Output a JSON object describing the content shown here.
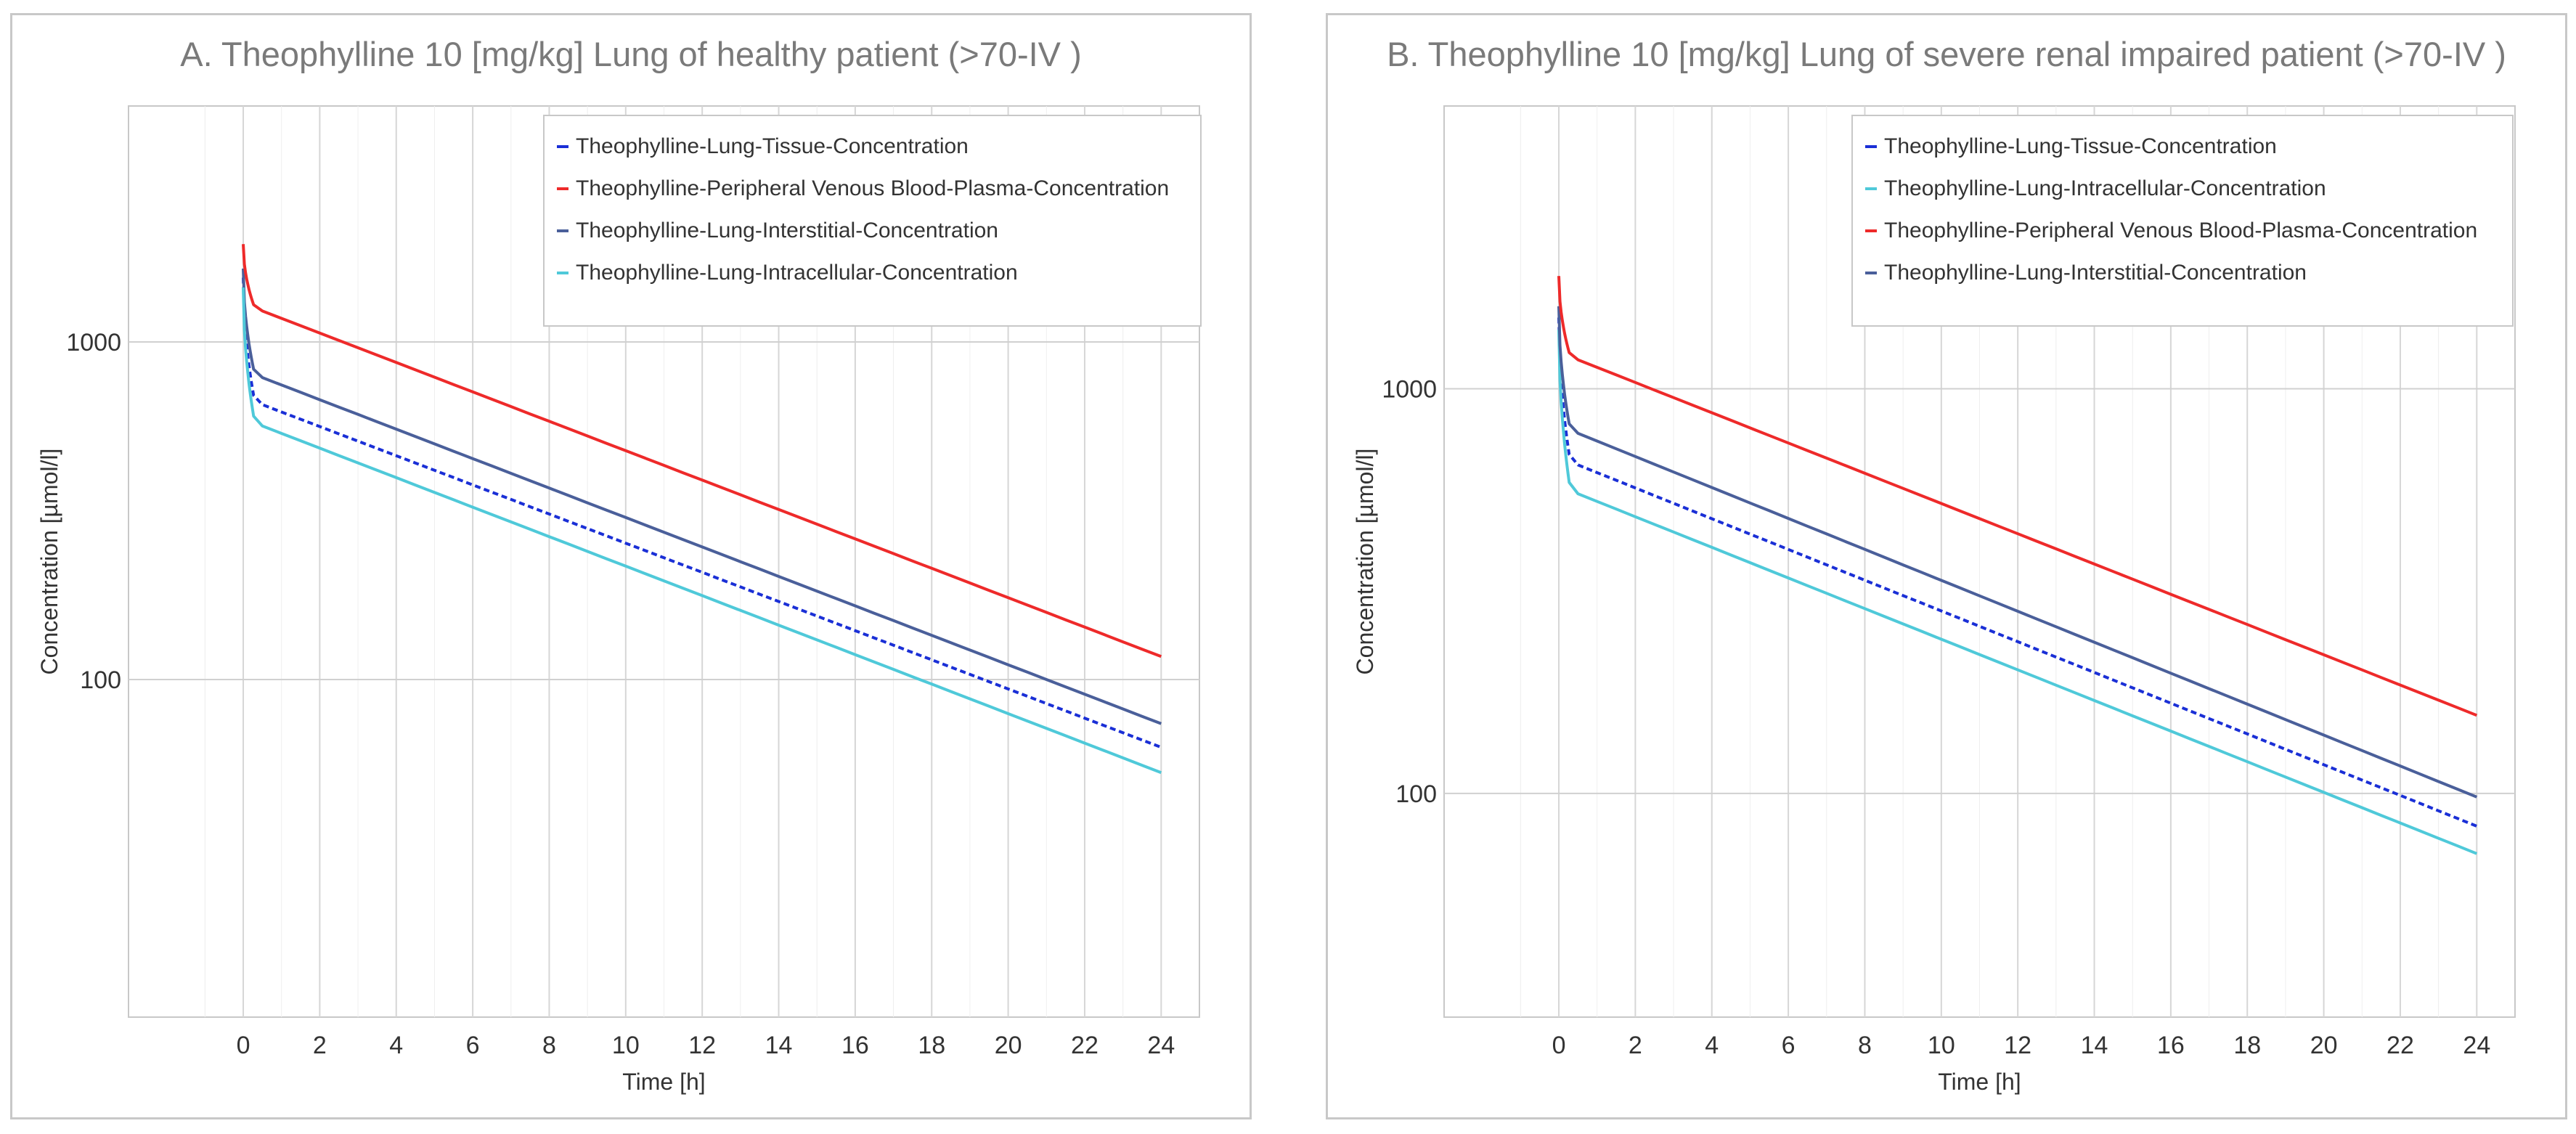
{
  "chart_data": [
    {
      "type": "line",
      "title": "A. Theophylline 10 [mg/kg] Lung of healthy patient (>70-IV )",
      "xlabel": "Time [h]",
      "ylabel": "Concentration [µmol/l]",
      "xlim": [
        -3,
        25
      ],
      "ylim": [
        10,
        5000
      ],
      "yscale": "log",
      "x_ticks": [
        0,
        2,
        4,
        6,
        8,
        10,
        12,
        14,
        16,
        18,
        20,
        22,
        24
      ],
      "y_ticks": [
        100,
        1000
      ],
      "grid": true,
      "legend_position": "top-right",
      "series": [
        {
          "name": "Theophylline-Lung-Tissue-Concentration",
          "color": "#1a2fd6",
          "dash": true,
          "peak": 1550,
          "x": [
            0.3,
            24
          ],
          "values": [
            665,
            63
          ]
        },
        {
          "name": "Theophylline-Peripheral Venous Blood-Plasma-Concentration",
          "color": "#ee2a2a",
          "dash": false,
          "peak": 1950,
          "x": [
            0.3,
            24
          ],
          "values": [
            1260,
            117
          ]
        },
        {
          "name": "Theophylline-Lung-Interstitial-Concentration",
          "color": "#4a5f9a",
          "dash": false,
          "peak": 1650,
          "x": [
            0.3,
            24
          ],
          "values": [
            800,
            74
          ]
        },
        {
          "name": "Theophylline-Lung-Intracellular-Concentration",
          "color": "#4fc9d9",
          "dash": false,
          "peak": 1450,
          "x": [
            0.3,
            24
          ],
          "values": [
            575,
            53
          ]
        }
      ]
    },
    {
      "type": "line",
      "title": "B. Theophylline 10 [mg/kg] Lung of severe renal impaired patient (>70-IV )",
      "xlabel": "Time [h]",
      "ylabel": "Concentration [µmol/l]",
      "xlim": [
        -3,
        25
      ],
      "ylim": [
        28,
        5000
      ],
      "yscale": "log",
      "x_ticks": [
        0,
        2,
        4,
        6,
        8,
        10,
        12,
        14,
        16,
        18,
        20,
        22,
        24
      ],
      "y_ticks": [
        100,
        1000
      ],
      "grid": true,
      "legend_position": "top-right",
      "series": [
        {
          "name": "Theophylline-Lung-Tissue-Concentration",
          "color": "#1a2fd6",
          "dash": true,
          "peak": 1500,
          "x": [
            0.3,
            24
          ],
          "values": [
            660,
            83
          ]
        },
        {
          "name": "Theophylline-Lung-Intracellular-Concentration",
          "color": "#4fc9d9",
          "dash": false,
          "peak": 1400,
          "x": [
            0.3,
            24
          ],
          "values": [
            560,
            71
          ]
        },
        {
          "name": "Theophylline-Peripheral Venous Blood-Plasma-Concentration",
          "color": "#ee2a2a",
          "dash": false,
          "peak": 1900,
          "x": [
            0.3,
            24
          ],
          "values": [
            1200,
            156
          ]
        },
        {
          "name": "Theophylline-Lung-Interstitial-Concentration",
          "color": "#4a5f9a",
          "dash": false,
          "peak": 1600,
          "x": [
            0.3,
            24
          ],
          "values": [
            790,
            98
          ]
        }
      ]
    }
  ]
}
